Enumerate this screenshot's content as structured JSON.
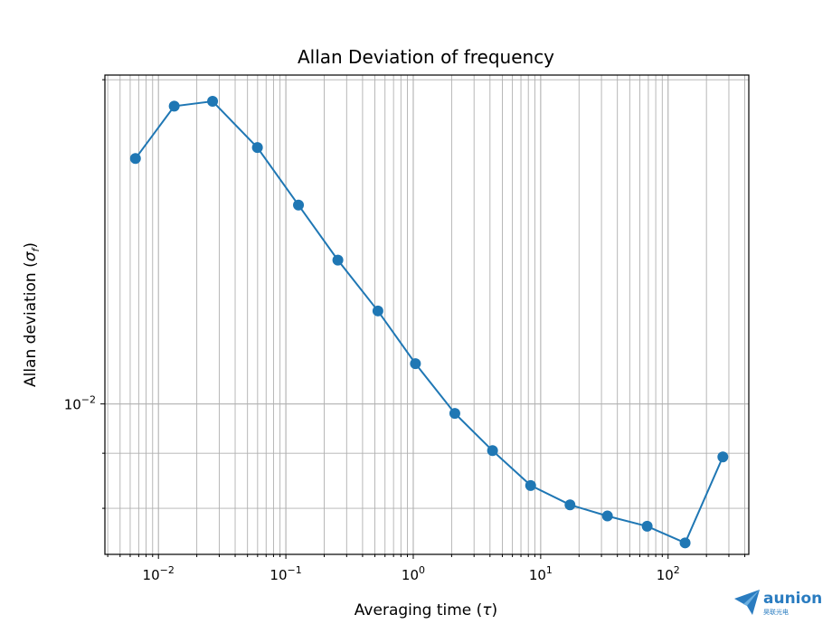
{
  "chart_data": {
    "type": "line",
    "title": "Allan Deviation of frequency",
    "xlabel": "Averaging time (τ)",
    "ylabel": "Allan deviation (σf)",
    "x_scale": "log",
    "y_scale": "log",
    "xlim": [
      0.0038,
      430
    ],
    "ylim": [
      0.00725,
      0.0202
    ],
    "grid": "both (major and minor)",
    "markers": "circle",
    "color": "#1f77b4",
    "x_ticks": [
      {
        "value": 0.01,
        "label": "10−2"
      },
      {
        "value": 0.1,
        "label": "10−1"
      },
      {
        "value": 1,
        "label": "100"
      },
      {
        "value": 10,
        "label": "101"
      },
      {
        "value": 100,
        "label": "102"
      }
    ],
    "y_ticks": [
      {
        "value": 0.01,
        "label": "10−2"
      }
    ],
    "series": [
      {
        "x": [
          0.0066,
          0.0133,
          0.0266,
          0.0598,
          0.1256,
          0.256,
          0.528,
          1.04,
          2.12,
          4.19,
          8.34,
          17.0,
          33.4,
          68.5,
          136,
          269
        ],
        "y": [
          0.0169,
          0.0189,
          0.0191,
          0.0173,
          0.0153,
          0.0136,
          0.0122,
          0.0109,
          0.0098,
          0.00905,
          0.0084,
          0.00806,
          0.00787,
          0.0077,
          0.00743,
          0.00893
        ]
      }
    ]
  },
  "watermark": {
    "brand": "aunion",
    "subtitle": "昊联光电"
  }
}
